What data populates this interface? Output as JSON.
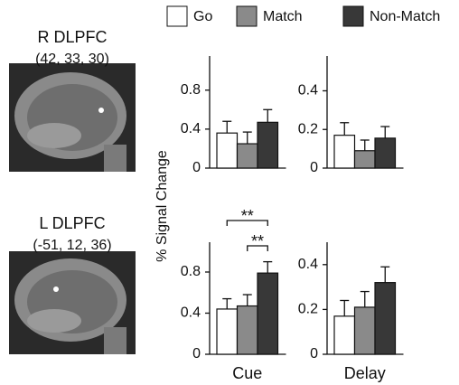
{
  "chart_data": [
    {
      "type": "bar",
      "title": "R DLPFC",
      "subtitle": "(42, 33, 30)",
      "ylabel": "% Signal Change",
      "categories": [
        "Go",
        "Match",
        "Non-Match"
      ],
      "colors": [
        "#ffffff",
        "#8a8a8a",
        "#383838"
      ],
      "values": [
        0.36,
        0.25,
        0.47
      ],
      "errors": [
        0.12,
        0.12,
        0.13
      ],
      "ylim": [
        0,
        1.15
      ],
      "yticks": [
        0,
        0.4,
        0.8
      ]
    },
    {
      "type": "bar",
      "colors": [
        "#ffffff",
        "#8a8a8a",
        "#383838"
      ],
      "values": [
        0.17,
        0.09,
        0.155
      ],
      "errors": [
        0.065,
        0.055,
        0.06
      ],
      "ylim": [
        0,
        0.58
      ],
      "yticks": [
        0,
        0.2,
        0.4
      ]
    },
    {
      "type": "bar",
      "title": "L DLPFC",
      "subtitle": "(-51, 12, 36)",
      "xlabel": "Cue",
      "colors": [
        "#ffffff",
        "#8a8a8a",
        "#383838"
      ],
      "values": [
        0.44,
        0.47,
        0.79
      ],
      "errors": [
        0.1,
        0.11,
        0.11
      ],
      "ylim": [
        0,
        1.09
      ],
      "yticks": [
        0,
        0.4,
        0.8
      ],
      "annotations": [
        {
          "text": "**",
          "pair": [
            0,
            2
          ]
        },
        {
          "text": "**",
          "pair": [
            1,
            2
          ]
        }
      ]
    },
    {
      "type": "bar",
      "xlabel": "Delay",
      "colors": [
        "#ffffff",
        "#8a8a8a",
        "#383838"
      ],
      "values": [
        0.17,
        0.21,
        0.32
      ],
      "errors": [
        0.07,
        0.07,
        0.07
      ],
      "ylim": [
        0,
        0.5
      ],
      "yticks": [
        0,
        0.2,
        0.4
      ]
    }
  ]
}
